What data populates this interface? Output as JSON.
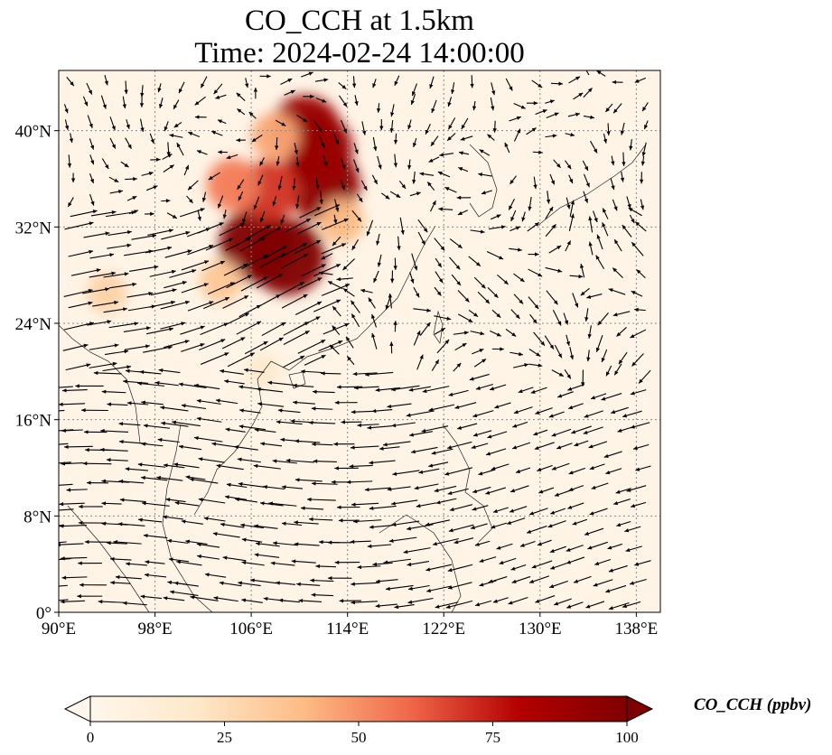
{
  "title": {
    "line1": "CO_CCH at 1.5km",
    "line2": "Time: 2024-02-24 14:00:00"
  },
  "map": {
    "lon_range": [
      90,
      140
    ],
    "lat_range": [
      0,
      45
    ],
    "lon_ticks": [
      {
        "value": 90,
        "label": "90°E"
      },
      {
        "value": 98,
        "label": "98°E"
      },
      {
        "value": 106,
        "label": "106°E"
      },
      {
        "value": 114,
        "label": "114°E"
      },
      {
        "value": 122,
        "label": "122°E"
      },
      {
        "value": 130,
        "label": "130°E"
      },
      {
        "value": 138,
        "label": "138°E"
      }
    ],
    "lat_ticks": [
      {
        "value": 0,
        "label": "0°"
      },
      {
        "value": 8,
        "label": "8°N"
      },
      {
        "value": 16,
        "label": "16°N"
      },
      {
        "value": 24,
        "label": "24°N"
      },
      {
        "value": 32,
        "label": "32°N"
      },
      {
        "value": 40,
        "label": "40°N"
      }
    ],
    "gridlines": "dotted",
    "wind_vectors": "shown",
    "concentration_blobs": [
      {
        "lon": 106.5,
        "lat": 30.5,
        "value": 100
      },
      {
        "lon": 109.0,
        "lat": 29.5,
        "value": 100
      },
      {
        "lon": 112.0,
        "lat": 35.5,
        "value": 95
      },
      {
        "lon": 111.5,
        "lat": 38.5,
        "value": 90
      },
      {
        "lon": 110.5,
        "lat": 40.0,
        "value": 90
      },
      {
        "lon": 107.5,
        "lat": 35.0,
        "value": 70
      },
      {
        "lon": 104.5,
        "lat": 35.5,
        "value": 55
      },
      {
        "lon": 108.0,
        "lat": 39.5,
        "value": 45
      },
      {
        "lon": 113.5,
        "lat": 32.5,
        "value": 40
      },
      {
        "lon": 103.5,
        "lat": 27.5,
        "value": 35
      },
      {
        "lon": 94.0,
        "lat": 26.5,
        "value": 30
      },
      {
        "lon": 107.0,
        "lat": 20.0,
        "value": 18
      }
    ]
  },
  "colorbar": {
    "label": "CO_CCH (ppbv)",
    "min": 0,
    "max": 100,
    "extend": "both",
    "colormap": "OrRd",
    "ticks": [
      {
        "value": 0,
        "label": "0"
      },
      {
        "value": 25,
        "label": "25"
      },
      {
        "value": 50,
        "label": "50"
      },
      {
        "value": 75,
        "label": "75"
      },
      {
        "value": 100,
        "label": "100"
      }
    ]
  }
}
